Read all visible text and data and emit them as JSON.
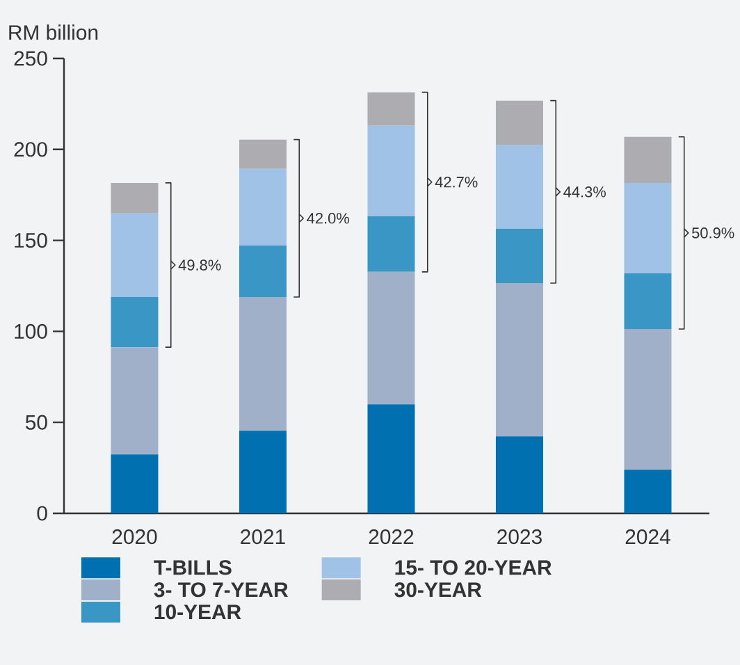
{
  "chart_data": {
    "type": "bar",
    "stacked": true,
    "ylabel": "RM billion",
    "categories": [
      "2020",
      "2021",
      "2022",
      "2023",
      "2024"
    ],
    "series": [
      {
        "name": "T-BILLS",
        "color": "#0070b0",
        "values": [
          32.4,
          45.4,
          59.9,
          42.3,
          24.0
        ]
      },
      {
        "name": "3- TO 7-YEAR",
        "color": "#a0b0c8",
        "values": [
          58.9,
          73.5,
          72.8,
          84.2,
          77.3
        ]
      },
      {
        "name": "10-YEAR",
        "color": "#3a96c4",
        "values": [
          27.6,
          28.3,
          30.6,
          29.9,
          30.6
        ]
      },
      {
        "name": "15- TO 20-YEAR",
        "color": "#a0c2e6",
        "values": [
          45.9,
          42.1,
          49.7,
          45.9,
          49.7
        ]
      },
      {
        "name": "30-YEAR",
        "color": "#adadb1",
        "values": [
          16.8,
          16.1,
          18.4,
          24.5,
          25.3
        ]
      }
    ],
    "ylim": [
      0,
      250
    ],
    "yticks": [
      0,
      50,
      100,
      150,
      200,
      250
    ],
    "grid": false,
    "legend": "bottom",
    "annotations": [
      "49.8%",
      "42.0%",
      "42.7%",
      "44.3%",
      "50.9%"
    ]
  }
}
